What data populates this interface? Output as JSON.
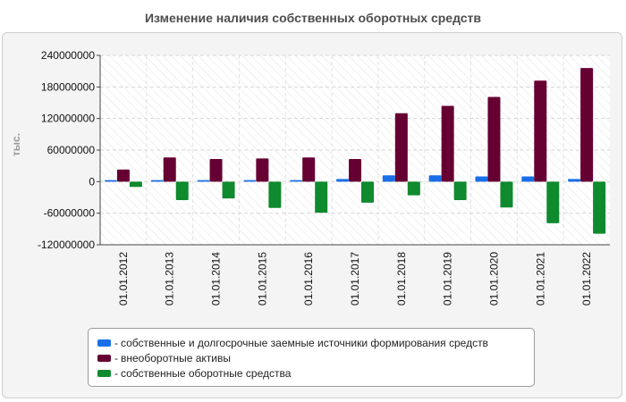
{
  "chart_data": {
    "type": "bar",
    "title": "Изменение наличия собственных оборотных средств",
    "ylabel": "тыс.",
    "xlabel": "",
    "ylim": [
      -120000000,
      240000000
    ],
    "yticks": [
      240000000,
      180000000,
      120000000,
      60000000,
      0,
      -60000000,
      -120000000
    ],
    "ytick_labels": [
      "240000000",
      "180000000",
      "120000000",
      "60000000",
      "0",
      "-60000000",
      "-120000000"
    ],
    "grid": true,
    "legend_position": "bottom",
    "categories": [
      "01.01.2012",
      "01.01.2013",
      "01.01.2014",
      "01.01.2015",
      "01.01.2016",
      "01.01.2017",
      "01.01.2018",
      "01.01.2019",
      "01.01.2020",
      "01.01.2021",
      "01.01.2022"
    ],
    "series": [
      {
        "name": "собственные и долгосрочные заемные источники формирования средств",
        "color": "#1a6fe8",
        "values": [
          3000000,
          3000000,
          3000000,
          3000000,
          3000000,
          5000000,
          12000000,
          12000000,
          10000000,
          10000000,
          5000000
        ]
      },
      {
        "name": "внеоборотные активы",
        "color": "#660033",
        "values": [
          23000000,
          46000000,
          43000000,
          44000000,
          46000000,
          43000000,
          130000000,
          144000000,
          161000000,
          192000000,
          216000000
        ]
      },
      {
        "name": "собственные оборотные средства",
        "color": "#0f8a2e",
        "values": [
          -10000000,
          -35000000,
          -32000000,
          -50000000,
          -59000000,
          -40000000,
          -26000000,
          -35000000,
          -49000000,
          -79000000,
          -99000000
        ]
      }
    ]
  },
  "legend": {
    "prefix": "-"
  }
}
